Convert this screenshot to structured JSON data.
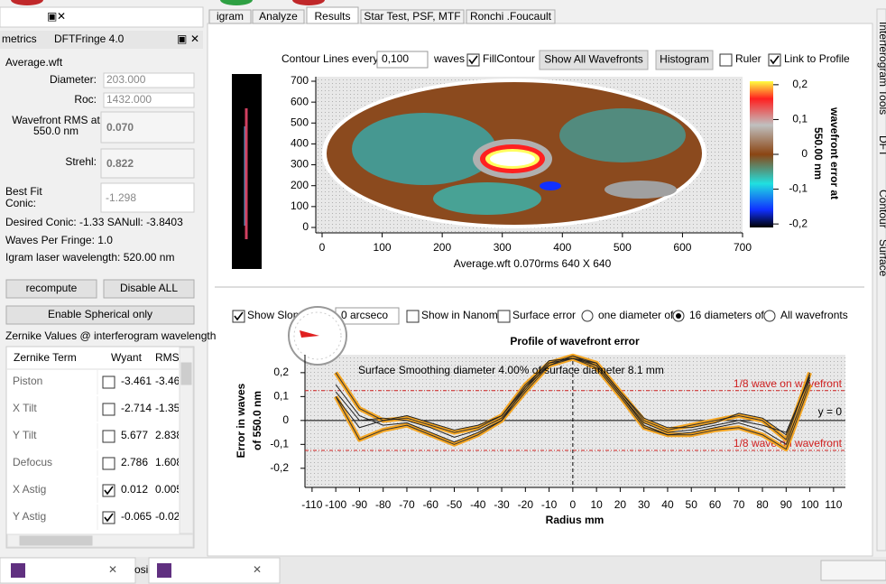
{
  "left_panel": {
    "title": "metrics",
    "app": "DFTFringe 4.0",
    "file": "Average.wft",
    "fields": [
      {
        "label": "Diameter:",
        "value": "203.000"
      },
      {
        "label": "Roc:",
        "value": "1432.000"
      }
    ],
    "rms_label": [
      "Wavefront RMS at",
      "550.0 nm"
    ],
    "rms": "0.070",
    "strehl_label": "Strehl:",
    "strehl": "0.822",
    "conic_label": [
      "Best Fit",
      "Conic:"
    ],
    "conic": "-1.298",
    "info": [
      "Desired Conic:  -1.33 SANull: -3.8403",
      "Waves Per Fringe: 1.0",
      "Igram laser wavelength: 520.00 nm"
    ],
    "buttons": [
      "recompute",
      "Disable ALL",
      "Enable Spherical only"
    ],
    "zernike_title": "Zernike Values @ interferogram wavelength",
    "table": {
      "header": [
        "Zernike Term",
        "Wyant",
        "RMS"
      ],
      "rows": [
        [
          "Piston",
          false,
          "-3.461",
          "-3.46"
        ],
        [
          "X Tilt",
          false,
          "-2.714",
          "-1.35"
        ],
        [
          "Y Tilt",
          false,
          "5.677",
          "2.838"
        ],
        [
          "Defocus",
          false,
          "2.786",
          "1.608"
        ],
        [
          "X Astig",
          true,
          "0.012",
          "0.005"
        ],
        [
          "Y Astig",
          true,
          "-0.065",
          "-0.02"
        ]
      ]
    }
  },
  "tabs": {
    "items": [
      "igram",
      "Analyze",
      "Results",
      "Star Test, PSF, MTF",
      "Ronchi .Foucault"
    ],
    "active": 2
  },
  "side_tabs": [
    "Interferogram Tools",
    "DFT",
    "Contour",
    "Surface"
  ],
  "contour_controls": {
    "label": "Contour Lines every",
    "step": "0,100",
    "unit": "waves",
    "fill": {
      "label": "FillContour",
      "checked": true
    },
    "buttons": [
      "Show All Wavefronts",
      "Histogram"
    ],
    "ruler": {
      "label": "Ruler",
      "checked": false
    },
    "link": {
      "label": "Link to Profile",
      "checked": true
    }
  },
  "contour": {
    "xlim": [
      0,
      700
    ],
    "ylim": [
      0,
      700
    ],
    "xticks": [
      0,
      100,
      200,
      300,
      400,
      500,
      600,
      700
    ],
    "yticks": [
      0,
      100,
      200,
      300,
      400,
      500,
      600,
      700
    ],
    "caption": "Average.wft  0.070rms 640 X 640",
    "colorbar": {
      "lim": [
        -0.21,
        0.21
      ],
      "ticks": [
        {
          "value": 0.2,
          "label": "0,2"
        },
        {
          "value": 0.1,
          "label": "0,1"
        },
        0,
        {
          "value": -0.1,
          "label": "-0,1"
        },
        {
          "value": -0.2,
          "label": "-0,2"
        }
      ],
      "label": [
        "wavefront error at",
        "550.00 nm"
      ]
    }
  },
  "profile_controls": {
    "slope": {
      "label": "Show Slope",
      "checked": true
    },
    "arc": "0 arcseco",
    "nano": {
      "label": "Show in Nanome",
      "checked": false
    },
    "surface": {
      "label": "Surface error",
      "checked": false
    },
    "radios": [
      {
        "label": "one diameter of",
        "checked": false
      },
      {
        "label": "16 diameters of",
        "checked": true
      },
      {
        "label": "All wavefronts",
        "checked": false
      }
    ]
  },
  "profile": {
    "title": "Profile of wavefront error",
    "xlabel": "Radius mm",
    "ylabel": [
      "Error in waves",
      "of  550.0 nm"
    ],
    "annotation": "Surface Smoothing diameter   4.00% of surface diameter    8.1 mm",
    "eighth_label": "1/8 wave on wavefront",
    "ref_lines": [
      0.125,
      -0.125
    ],
    "zero_label": "y = 0",
    "xlim": [
      -113,
      115
    ],
    "ylim": [
      -0.28,
      0.275
    ],
    "xticks": [
      -110,
      -100,
      -90,
      -80,
      -70,
      -60,
      -50,
      -40,
      -30,
      -20,
      -10,
      0,
      10,
      20,
      30,
      40,
      50,
      60,
      70,
      80,
      90,
      100,
      110
    ],
    "yticks": [
      {
        "value": 0.2,
        "label": "0,2"
      },
      {
        "value": 0.1,
        "label": "0,1"
      },
      0,
      {
        "value": -0.1,
        "label": "-0,1"
      },
      {
        "value": -0.2,
        "label": "-0,2"
      }
    ],
    "x": [
      -100,
      -90,
      -80,
      -70,
      -60,
      -50,
      -40,
      -30,
      -20,
      -10,
      0,
      10,
      20,
      30,
      40,
      50,
      60,
      70,
      80,
      90,
      100
    ],
    "series": [
      {
        "color": "#f5a623",
        "values": [
          0.2,
          0.05,
          0.0,
          0.01,
          -0.02,
          -0.05,
          -0.03,
          0.02,
          0.15,
          0.24,
          0.27,
          0.24,
          0.12,
          0.0,
          -0.04,
          -0.02,
          0.0,
          0.02,
          0.0,
          -0.08,
          0.2
        ]
      },
      {
        "color": "#f5a623",
        "values": [
          0.1,
          -0.08,
          -0.04,
          -0.02,
          -0.06,
          -0.1,
          -0.06,
          0.0,
          0.12,
          0.23,
          0.26,
          0.22,
          0.1,
          -0.03,
          -0.06,
          -0.06,
          -0.04,
          -0.03,
          -0.06,
          -0.12,
          0.15
        ]
      },
      {
        "color": "#222222",
        "values": [
          0.12,
          0.0,
          0.01,
          0.0,
          -0.03,
          -0.07,
          -0.04,
          0.01,
          0.13,
          0.24,
          0.26,
          0.23,
          0.11,
          -0.01,
          -0.05,
          -0.04,
          -0.02,
          0.0,
          -0.02,
          -0.05,
          0.18
        ]
      },
      {
        "color": "#222222",
        "values": [
          0.15,
          0.02,
          -0.02,
          -0.01,
          -0.05,
          -0.09,
          -0.05,
          0.0,
          0.14,
          0.23,
          0.27,
          0.23,
          0.11,
          -0.02,
          -0.06,
          -0.05,
          -0.03,
          -0.01,
          -0.04,
          -0.1,
          0.17
        ]
      },
      {
        "color": "#222222",
        "values": [
          0.1,
          -0.03,
          0.0,
          0.02,
          -0.01,
          -0.04,
          -0.02,
          0.02,
          0.14,
          0.25,
          0.26,
          0.24,
          0.12,
          0.01,
          -0.03,
          -0.03,
          -0.01,
          0.03,
          0.01,
          -0.06,
          0.19
        ]
      }
    ]
  },
  "taskbar": {
    "fragment": "osi"
  }
}
